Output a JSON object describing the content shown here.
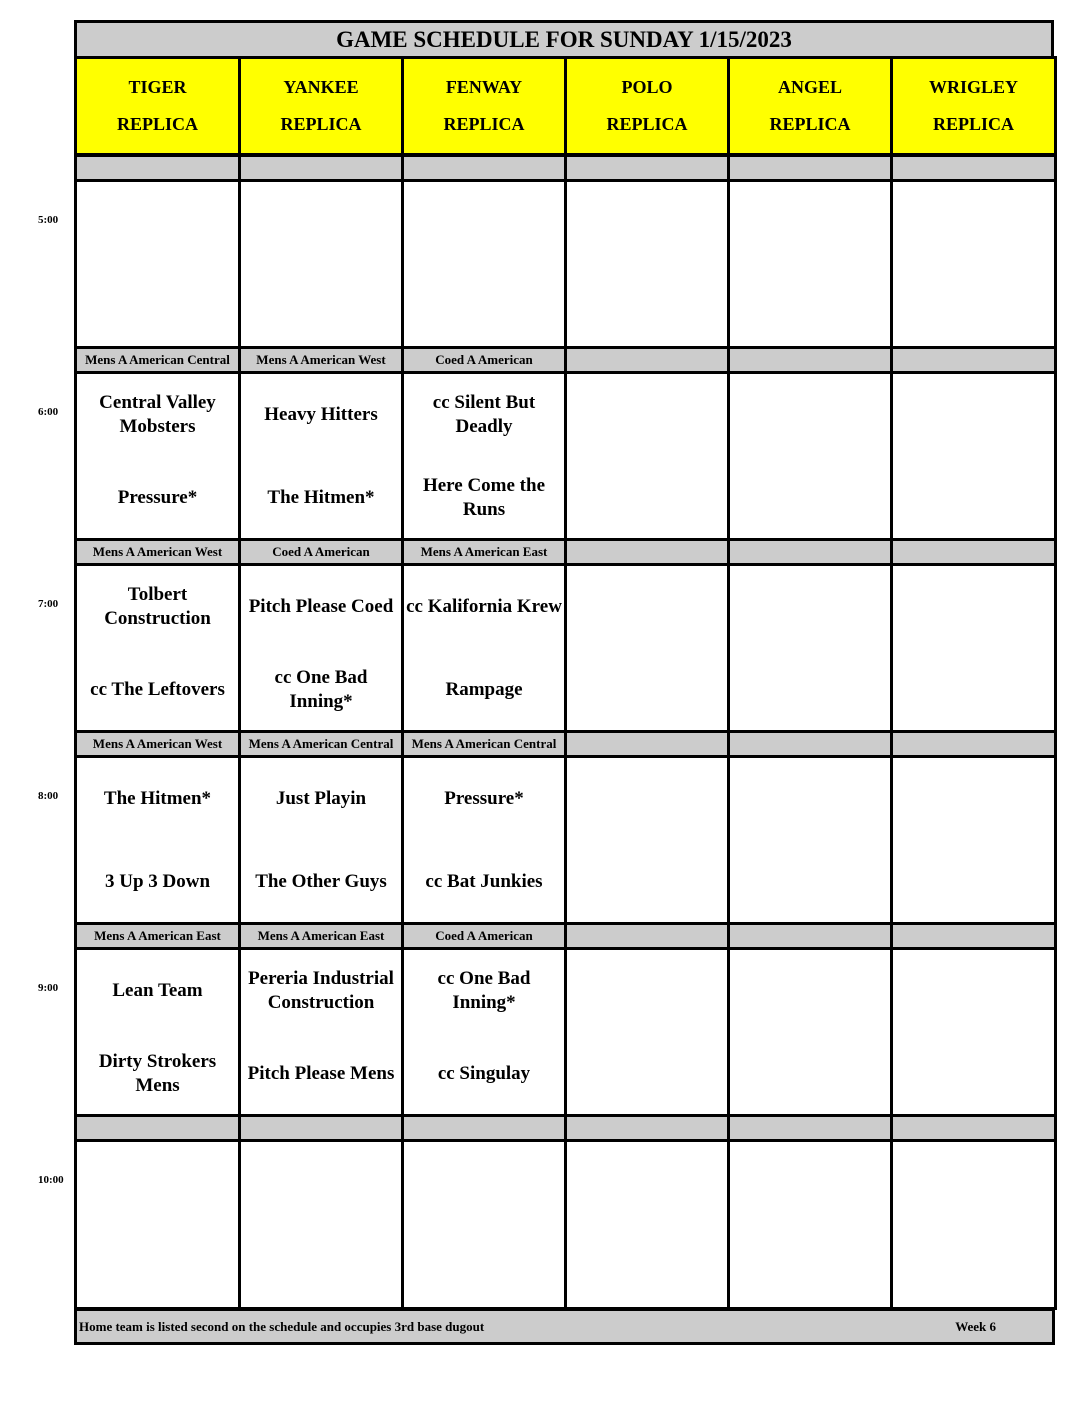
{
  "title": "GAME SCHEDULE FOR SUNDAY 1/15/2023",
  "fields": [
    [
      "TIGER",
      "REPLICA"
    ],
    [
      "YANKEE",
      "REPLICA"
    ],
    [
      "FENWAY",
      "REPLICA"
    ],
    [
      "POLO",
      "REPLICA"
    ],
    [
      "ANGEL",
      "REPLICA"
    ],
    [
      "WRIGLEY",
      "REPLICA"
    ]
  ],
  "slots": [
    {
      "time": "5:00",
      "divisions": [
        "",
        "",
        "",
        "",
        "",
        ""
      ],
      "games": [
        null,
        null,
        null,
        null,
        null,
        null
      ]
    },
    {
      "time": "6:00",
      "divisions": [
        "Mens A American Central",
        "Mens A American West",
        "Coed A American",
        "",
        "",
        ""
      ],
      "games": [
        [
          "Central Valley Mobsters",
          "Pressure*"
        ],
        [
          "Heavy Hitters",
          "The Hitmen*"
        ],
        [
          "cc Silent But Deadly",
          "Here Come the Runs"
        ],
        null,
        null,
        null
      ]
    },
    {
      "time": "7:00",
      "divisions": [
        "Mens A American West",
        "Coed A American",
        "Mens A American East",
        "",
        "",
        ""
      ],
      "games": [
        [
          "Tolbert Construction",
          "cc The Leftovers"
        ],
        [
          "Pitch Please Coed",
          "cc One Bad Inning*"
        ],
        [
          "cc Kalifornia Krew",
          "Rampage"
        ],
        null,
        null,
        null
      ]
    },
    {
      "time": "8:00",
      "divisions": [
        "Mens A American West",
        "Mens A American Central",
        "Mens A American Central",
        "",
        "",
        ""
      ],
      "games": [
        [
          "The Hitmen*",
          "3 Up 3 Down"
        ],
        [
          "Just Playin",
          "The Other Guys"
        ],
        [
          "Pressure*",
          "cc Bat Junkies"
        ],
        null,
        null,
        null
      ]
    },
    {
      "time": "9:00",
      "divisions": [
        "Mens A American East",
        "Mens A American East",
        "Coed A American",
        "",
        "",
        ""
      ],
      "games": [
        [
          "Lean Team",
          "Dirty Strokers Mens"
        ],
        [
          "Pereria Industrial Construction",
          "Pitch Please Mens"
        ],
        [
          "cc One Bad Inning*",
          "cc Singulay"
        ],
        null,
        null,
        null
      ]
    },
    {
      "time": "10:00",
      "divisions": [
        "",
        "",
        "",
        "",
        "",
        ""
      ],
      "games": [
        null,
        null,
        null,
        null,
        null,
        null
      ]
    }
  ],
  "footer": {
    "note": "Home team is listed second on the schedule and occupies 3rd base dugout",
    "week": "Week 6"
  },
  "colors": {
    "header": "#ffff00",
    "band": "#cccccc"
  }
}
